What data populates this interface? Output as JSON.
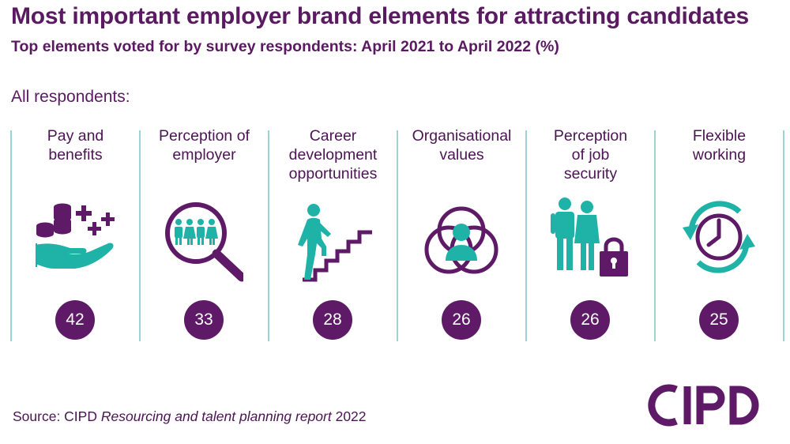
{
  "title": "Most important employer brand elements for attracting candidates",
  "subtitle": "Top elements voted for by survey respondents: April 2021 to April 2022 (%)",
  "group_label": "All respondents:",
  "colors": {
    "purple": "#5e1a67",
    "teal": "#1fb3a8",
    "divider": "#9ed3d6"
  },
  "elements": [
    {
      "label": "Pay and\nbenefits",
      "value": "42",
      "icon": "coins-hand-icon"
    },
    {
      "label": "Perception of\nemployer",
      "value": "33",
      "icon": "magnifier-people-icon"
    },
    {
      "label": "Career\ndevelopment\nopportunities",
      "value": "28",
      "icon": "climbing-stairs-icon"
    },
    {
      "label": "Organisational\nvalues",
      "value": "26",
      "icon": "venn-person-icon"
    },
    {
      "label": "Perception\nof job\nsecurity",
      "value": "26",
      "icon": "people-padlock-icon"
    },
    {
      "label": "Flexible\nworking",
      "value": "25",
      "icon": "clock-arrows-icon"
    }
  ],
  "source": {
    "prefix": "Source: CIPD ",
    "title": "Resourcing and talent planning report",
    "suffix": " 2022"
  },
  "logo_text": "CIPD"
}
